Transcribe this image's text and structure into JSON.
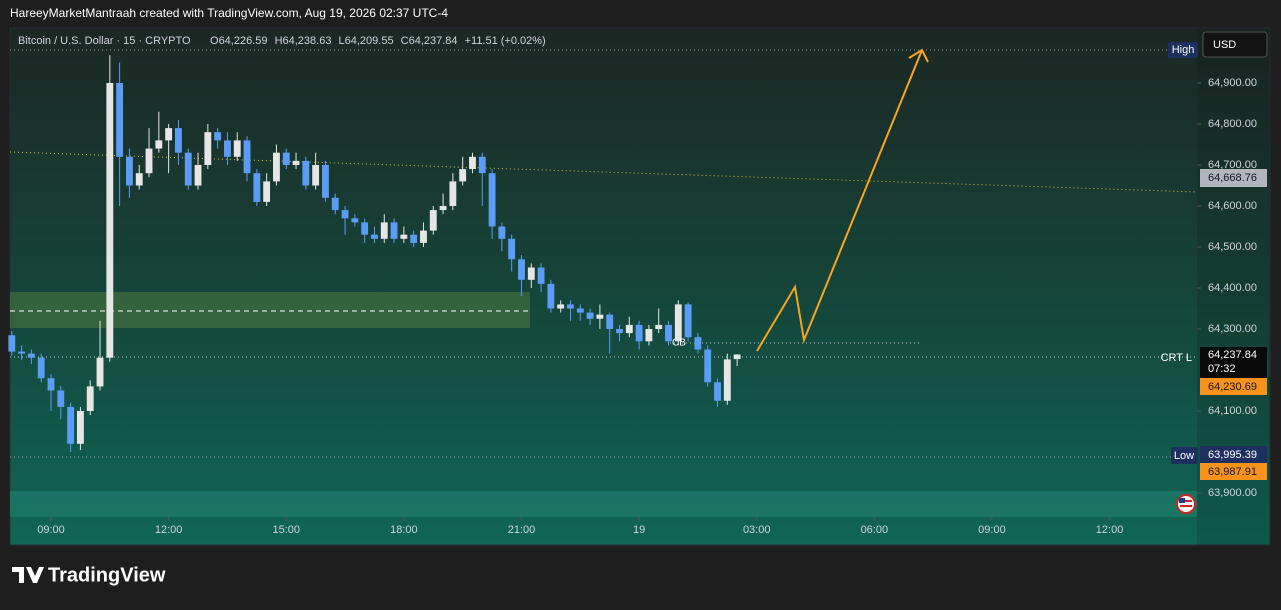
{
  "header": "HareeyMarketMantraah created with TradingView.com, Aug 19, 2026 02:37 UTC-4",
  "chart_data": {
    "type": "candlestick",
    "symbol": "Bitcoin / U.S. Dollar · 15 · CRYPTO",
    "ohlc_legend": {
      "o_label": "O",
      "o": "64,226.59",
      "h_label": "H",
      "h": "64,238.63",
      "l_label": "L",
      "l": "64,209.55",
      "c_label": "C",
      "c": "64,237.84",
      "change": "+11.51 (+0.02%)"
    },
    "up_color": "#e6e6e6",
    "down_color": "#5b9cf6",
    "x": [
      8,
      8.25,
      8.5,
      8.75,
      9,
      9.25,
      9.5,
      9.75,
      10,
      10.25,
      10.5,
      10.75,
      11,
      11.25,
      11.5,
      11.75,
      12,
      12.25,
      12.5,
      12.75,
      13,
      13.25,
      13.5,
      13.75,
      14,
      14.25,
      14.5,
      14.75,
      15,
      15.25,
      15.5,
      15.75,
      16,
      16.25,
      16.5,
      16.75,
      17,
      17.25,
      17.5,
      17.75,
      18,
      18.25,
      18.5,
      18.75,
      19,
      19.25,
      19.5,
      19.75,
      20,
      20.25,
      20.5,
      20.75,
      21,
      21.25,
      21.5,
      21.75,
      22,
      22.25,
      22.5,
      22.75,
      23,
      23.25,
      23.5,
      23.75,
      24,
      24.25,
      24.5,
      24.75,
      25,
      25.25,
      25.5,
      25.75,
      26,
      26.25,
      26.5
    ],
    "open": [
      64285,
      64245,
      64240,
      64230,
      64180,
      64150,
      64110,
      64020,
      64100,
      64160,
      64230,
      64900,
      64720,
      64650,
      64680,
      64740,
      64760,
      64790,
      64730,
      64650,
      64700,
      64780,
      64760,
      64720,
      64760,
      64680,
      64610,
      64660,
      64730,
      64700,
      64710,
      64650,
      64700,
      64620,
      64590,
      64570,
      64560,
      64530,
      64520,
      64560,
      64520,
      64530,
      64510,
      64540,
      64590,
      64600,
      64660,
      64690,
      64720,
      64680,
      64550,
      64520,
      64470,
      64420,
      64450,
      64410,
      64350,
      64360,
      64350,
      64340,
      64325,
      64335,
      64300,
      64290,
      64310,
      64270,
      64300,
      64310,
      64270,
      64360,
      64280,
      64250,
      64170,
      64125,
      64226.59
    ],
    "high": [
      64295,
      64260,
      64250,
      64240,
      64190,
      64160,
      64120,
      64110,
      64175,
      64320,
      64968,
      64950,
      64740,
      64700,
      64790,
      64830,
      64800,
      64810,
      64740,
      64730,
      64800,
      64790,
      64780,
      64780,
      64770,
      64690,
      64680,
      64750,
      64740,
      64730,
      64720,
      64730,
      64710,
      64630,
      64600,
      64580,
      64570,
      64550,
      64580,
      64570,
      64550,
      64540,
      64560,
      64600,
      64630,
      64680,
      64720,
      64730,
      64730,
      64690,
      64560,
      64530,
      64480,
      64460,
      64460,
      64420,
      64370,
      64370,
      64360,
      64350,
      64360,
      64340,
      64310,
      64330,
      64320,
      64310,
      64350,
      64320,
      64370,
      64365,
      64290,
      64260,
      64180,
      64240,
      64238.63
    ],
    "low": [
      64235,
      64225,
      64215,
      64170,
      64100,
      64080,
      64000,
      64005,
      64090,
      64150,
      64220,
      64600,
      64620,
      64640,
      64670,
      64730,
      64680,
      64700,
      64640,
      64640,
      64690,
      64740,
      64700,
      64710,
      64660,
      64600,
      64600,
      64650,
      64690,
      64690,
      64640,
      64640,
      64610,
      64580,
      64530,
      64550,
      64510,
      64510,
      64510,
      64510,
      64510,
      64500,
      64500,
      64530,
      64580,
      64590,
      64650,
      64680,
      64600,
      64520,
      64490,
      64440,
      64380,
      64400,
      64390,
      64340,
      64340,
      64320,
      64320,
      64310,
      64300,
      64240,
      64270,
      64280,
      64250,
      64260,
      64290,
      64260,
      64260,
      64270,
      64240,
      64160,
      64110,
      64115,
      64209.55
    ],
    "close": [
      64245,
      64240,
      64230,
      64180,
      64150,
      64110,
      64020,
      64100,
      64160,
      64230,
      64900,
      64720,
      64650,
      64680,
      64740,
      64760,
      64790,
      64730,
      64650,
      64700,
      64780,
      64760,
      64720,
      64760,
      64680,
      64610,
      64660,
      64730,
      64700,
      64710,
      64650,
      64700,
      64620,
      64590,
      64570,
      64560,
      64530,
      64520,
      64560,
      64520,
      64530,
      64510,
      64540,
      64590,
      64600,
      64660,
      64690,
      64720,
      64680,
      64550,
      64520,
      64470,
      64420,
      64450,
      64410,
      64350,
      64360,
      64350,
      64340,
      64325,
      64335,
      64300,
      64290,
      64310,
      64270,
      64300,
      64310,
      64270,
      64360,
      64280,
      64250,
      64170,
      64125,
      64226,
      64237.84
    ],
    "xlim": [
      7.954,
      38.23
    ],
    "ylim": [
      63841.5,
      65034.1
    ],
    "xticks": [
      {
        "value": 9,
        "label": "09:00"
      },
      {
        "value": 12,
        "label": "12:00"
      },
      {
        "value": 15,
        "label": "15:00"
      },
      {
        "value": 18,
        "label": "18:00"
      },
      {
        "value": 21,
        "label": "21:00"
      },
      {
        "value": 24,
        "label": "19"
      },
      {
        "value": 27,
        "label": "03:00"
      },
      {
        "value": 30,
        "label": "06:00"
      },
      {
        "value": 33,
        "label": "09:00"
      },
      {
        "value": 36,
        "label": "12:00"
      }
    ],
    "yticks": [
      {
        "value": 63900,
        "label": "63,900.00"
      },
      {
        "value": 64100,
        "label": "64,100.00"
      },
      {
        "value": 64300,
        "label": "64,300.00"
      },
      {
        "value": 64400,
        "label": "64,400.00"
      },
      {
        "value": 64500,
        "label": "64,500.00"
      },
      {
        "value": 64600,
        "label": "64,600.00"
      },
      {
        "value": 64700,
        "label": "64,700.00"
      },
      {
        "value": 64800,
        "label": "64,800.00"
      },
      {
        "value": 64900,
        "label": "64,900.00"
      }
    ],
    "grid": false,
    "price_labels": {
      "high": "High",
      "currency": "USD",
      "trendline": "64,668.76",
      "crt": "CRT L",
      "last": "64,237.84",
      "countdown": "07:32",
      "bid": "64,230.69",
      "low": "Low",
      "low_price": "63,995.39",
      "low_price2": "63,987.91",
      "cb": "CB"
    }
  },
  "footer": {
    "brand": "TradingView"
  }
}
